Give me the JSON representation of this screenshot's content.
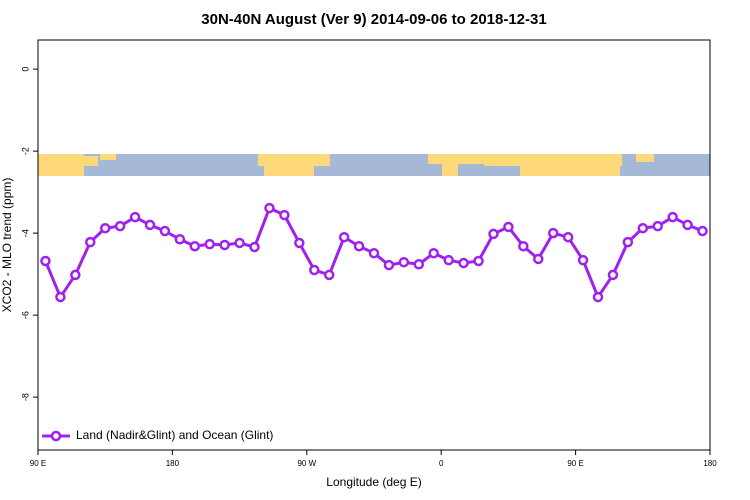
{
  "chart_data": {
    "type": "line",
    "title": "30N-40N August (Ver 9)   2014-09-06 to 2018-12-31",
    "x_label": "Longitude (deg E)",
    "y_label": "XCO2 - MLO trend (ppm)",
    "x": [
      95,
      105,
      115,
      125,
      135,
      145,
      155,
      165,
      175,
      185,
      195,
      205,
      215,
      225,
      235,
      245,
      255,
      265,
      275,
      285,
      295,
      305,
      315,
      325,
      335,
      345,
      355,
      365,
      375,
      385,
      395,
      405,
      415,
      425,
      435,
      445,
      455,
      465,
      475,
      485,
      495,
      505,
      515,
      525,
      535
    ],
    "series": [
      {
        "name": "Land (Nadir&Glint) and Ocean (Glint)",
        "color": "#a020f0",
        "values": [
          -4.68,
          -5.56,
          -5.02,
          -4.22,
          -3.88,
          -3.83,
          -3.61,
          -3.8,
          -3.95,
          -4.15,
          -4.32,
          -4.27,
          -4.29,
          -4.24,
          -4.34,
          -3.39,
          -3.56,
          -4.24,
          -4.9,
          -5.02,
          -4.1,
          -4.32,
          -4.49,
          -4.78,
          -4.71,
          -4.76,
          -4.49,
          -4.66,
          -4.73,
          -4.68,
          -4.02,
          -3.85,
          -4.32,
          -4.63,
          -4.0,
          -4.1,
          -4.66,
          -5.56,
          -5.02,
          -4.22,
          -3.88,
          -3.83,
          -3.61,
          -3.8,
          -3.95
        ]
      }
    ],
    "xlim": [
      90,
      540
    ],
    "ylim": [
      -9.29,
      0.71
    ],
    "xticks": [
      {
        "value": 90,
        "label": "90 E"
      },
      180,
      {
        "value": 270,
        "label": "90 W"
      },
      {
        "value": 360,
        "label": "0"
      },
      {
        "value": 450,
        "label": "90 E"
      },
      {
        "value": 540,
        "label": "180"
      }
    ],
    "yticks": [
      0,
      -2,
      -4,
      -6,
      -8
    ],
    "legend": "bottom-left"
  }
}
